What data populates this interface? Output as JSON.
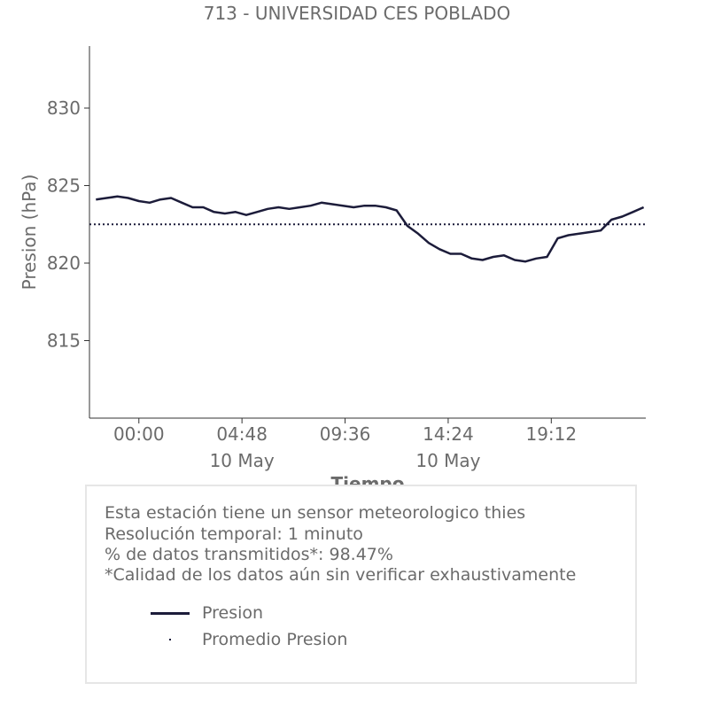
{
  "chart_data": {
    "type": "line",
    "title": "713 - UNIVERSIDAD CES POBLADO",
    "xlabel": "Tiempo",
    "ylabel": "Presion (hPa)",
    "ylim": [
      810,
      834
    ],
    "xlim_hours": [
      -2.3,
      23.6
    ],
    "y_ticks": [
      815,
      820,
      825,
      830
    ],
    "x_ticks": [
      {
        "hours": 0.0,
        "label": "00:00",
        "sublabel": ""
      },
      {
        "hours": 4.8,
        "label": "04:48",
        "sublabel": "10 May"
      },
      {
        "hours": 9.6,
        "label": "09:36",
        "sublabel": ""
      },
      {
        "hours": 14.4,
        "label": "14:24",
        "sublabel": "10 May"
      },
      {
        "hours": 19.2,
        "label": "19:12",
        "sublabel": ""
      }
    ],
    "series": [
      {
        "name": "Presion",
        "color": "#1c1c3a",
        "style": "solid",
        "x_hours": [
          -2.0,
          -1.5,
          -1.0,
          -0.5,
          0.0,
          0.5,
          1.0,
          1.5,
          2.0,
          2.5,
          3.0,
          3.5,
          4.0,
          4.5,
          5.0,
          5.5,
          6.0,
          6.5,
          7.0,
          7.5,
          8.0,
          8.5,
          9.0,
          9.5,
          10.0,
          10.5,
          11.0,
          11.5,
          12.0,
          12.5,
          13.0,
          13.5,
          14.0,
          14.5,
          15.0,
          15.5,
          16.0,
          16.5,
          17.0,
          17.5,
          18.0,
          18.5,
          19.0,
          19.5,
          20.0,
          20.5,
          21.0,
          21.5,
          22.0,
          22.5,
          23.0,
          23.5
        ],
        "values": [
          824.1,
          824.2,
          824.3,
          824.2,
          824.0,
          823.9,
          824.1,
          824.2,
          823.9,
          823.6,
          823.6,
          823.3,
          823.2,
          823.3,
          823.1,
          823.3,
          823.5,
          823.6,
          823.5,
          823.6,
          823.7,
          823.9,
          823.8,
          823.7,
          823.6,
          823.7,
          823.7,
          823.6,
          823.4,
          822.4,
          821.9,
          821.3,
          820.9,
          820.6,
          820.6,
          820.3,
          820.2,
          820.4,
          820.5,
          820.2,
          820.1,
          820.3,
          820.4,
          821.6,
          821.8,
          821.9,
          822.0,
          822.1,
          822.8,
          823.0,
          823.3,
          823.6
        ]
      },
      {
        "name": "Promedio Presion",
        "color": "#1c1c3a",
        "style": "dotted",
        "value": 822.5
      }
    ],
    "legend": "below"
  },
  "info": {
    "lines": [
      "Esta estación tiene un sensor meteorologico thies",
      "Resolución temporal: 1 minuto",
      "% de datos transmitidos*: 98.47%",
      "*Calidad de los datos aún sin verificar exhaustivamente"
    ],
    "legend_line": "Presion",
    "legend_dot": "Promedio Presion"
  }
}
